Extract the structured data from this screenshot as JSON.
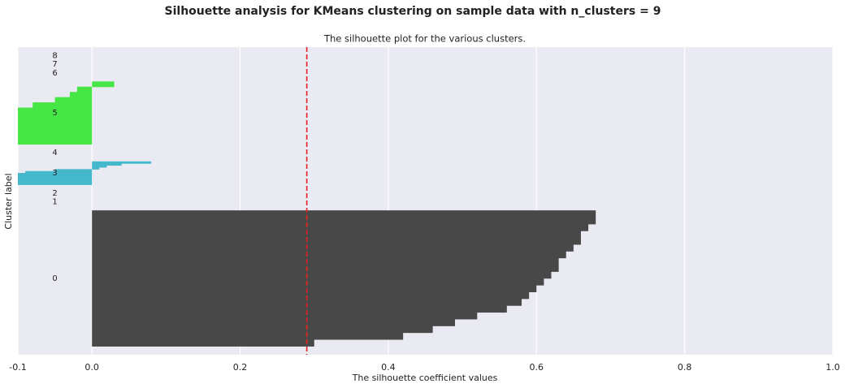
{
  "chart_data": {
    "type": "silhouette",
    "suptitle": "Silhouette analysis for KMeans clustering on sample data with n_clusters = 9",
    "title": "The silhouette plot for the various clusters.",
    "xlabel": "The silhouette coefficient values",
    "ylabel": "Cluster label",
    "xlim": [
      -0.1,
      1.0
    ],
    "xticks": [
      -0.1,
      {
        "value": 0,
        "label": "0.0"
      },
      0.2,
      0.4,
      0.6,
      0.8,
      {
        "value": 1,
        "label": "1.0"
      }
    ],
    "ylim": [
      0,
      358
    ],
    "grid": true,
    "average_silhouette": 0.29,
    "average_color": "#e8231f",
    "series": [
      {
        "name": "0",
        "color": "#484848",
        "size": 158,
        "values": [
          0.3,
          0.42,
          0.46,
          0.49,
          0.52,
          0.56,
          0.58,
          0.59,
          0.6,
          0.61,
          0.62,
          0.63,
          0.63,
          0.64,
          0.65,
          0.66,
          0.66,
          0.67,
          0.68,
          0.68
        ]
      },
      {
        "name": "1",
        "size": 0,
        "values": []
      },
      {
        "name": "2",
        "size": 0,
        "values": []
      },
      {
        "name": "3",
        "color": "#45b8cb",
        "size": 27,
        "values": [
          -0.14,
          -0.13,
          -0.12,
          -0.12,
          -0.11,
          -0.1,
          -0.09,
          -0.05,
          0.01,
          0.02,
          0.04,
          0.08
        ]
      },
      {
        "name": "4",
        "size": 0,
        "values": []
      },
      {
        "name": "5",
        "color": "#46e646",
        "size": 73,
        "values": [
          -0.15,
          -0.15,
          -0.15,
          -0.15,
          -0.15,
          -0.15,
          -0.12,
          -0.08,
          -0.05,
          -0.03,
          -0.02,
          0.03
        ]
      },
      {
        "name": "6",
        "size": 0,
        "values": []
      },
      {
        "name": "7",
        "size": 0,
        "values": []
      },
      {
        "name": "8",
        "size": 0,
        "values": []
      }
    ]
  }
}
